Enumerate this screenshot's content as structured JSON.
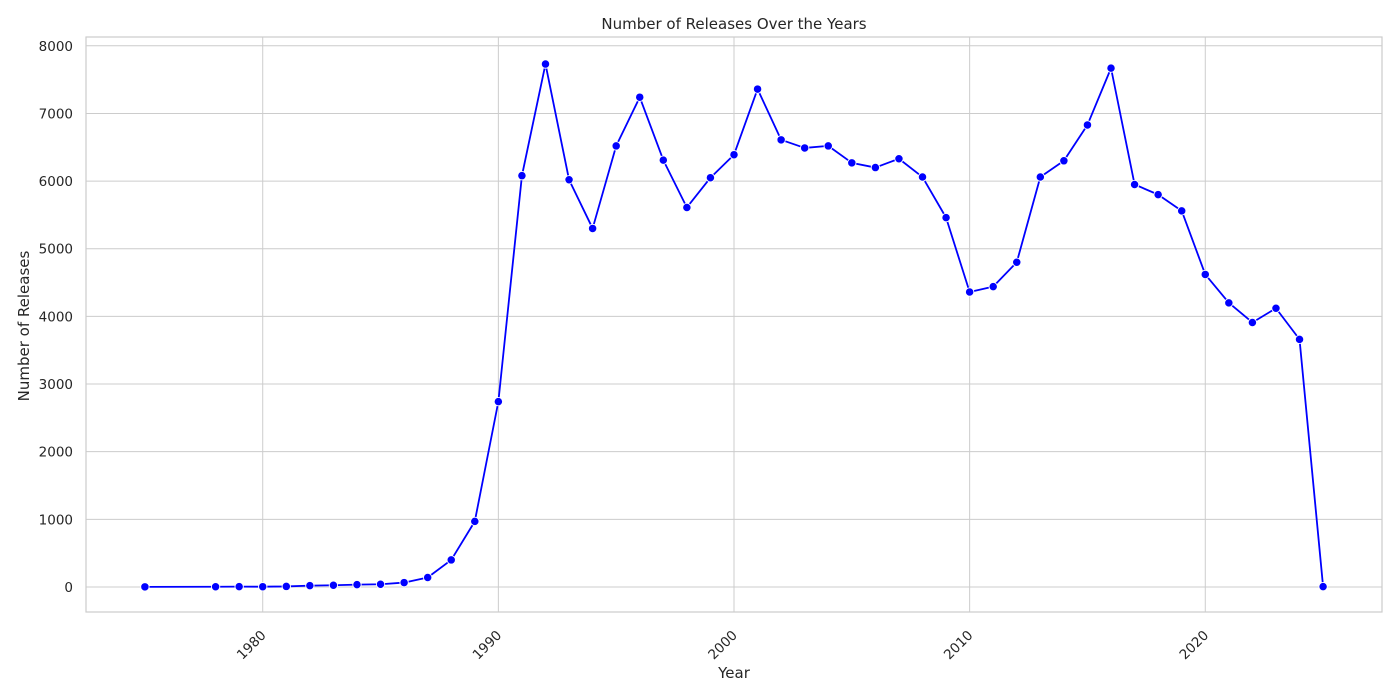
{
  "chart_data": {
    "type": "line",
    "title": "Number of Releases Over the Years",
    "xlabel": "Year",
    "ylabel": "Number of Releases",
    "xlim": [
      1972.5,
      2027.5
    ],
    "ylim": [
      -370,
      8130
    ],
    "x_ticks": [
      1980,
      1990,
      2000,
      2010,
      2020
    ],
    "y_ticks": [
      0,
      1000,
      2000,
      3000,
      4000,
      5000,
      6000,
      7000,
      8000
    ],
    "grid": true,
    "legend": "none",
    "colors": {
      "line": "#0000ff",
      "marker": "#0000ff",
      "grid": "#cccccc",
      "spine": "#cccccc"
    },
    "series": [
      {
        "x": [
          1975,
          1978,
          1979,
          1980,
          1981,
          1982,
          1983,
          1984,
          1985,
          1986,
          1987,
          1988,
          1989,
          1990,
          1991,
          1992,
          1993,
          1994,
          1995,
          1996,
          1997,
          1998,
          1999,
          2000,
          2001,
          2002,
          2003,
          2004,
          2005,
          2006,
          2007,
          2008,
          2009,
          2010,
          2011,
          2012,
          2013,
          2014,
          2015,
          2016,
          2017,
          2018,
          2019,
          2020,
          2021,
          2022,
          2023,
          2024,
          2025
        ],
        "y": [
          2,
          3,
          5,
          4,
          8,
          20,
          25,
          35,
          40,
          65,
          140,
          400,
          970,
          2740,
          6080,
          7730,
          6020,
          5300,
          6520,
          7240,
          6310,
          5610,
          6050,
          6390,
          7360,
          6610,
          6490,
          6520,
          6270,
          6200,
          6330,
          6060,
          5460,
          4360,
          4440,
          4800,
          6060,
          6300,
          6830,
          7670,
          5950,
          5800,
          5560,
          4620,
          4200,
          3910,
          4120,
          3660,
          5
        ]
      }
    ]
  }
}
